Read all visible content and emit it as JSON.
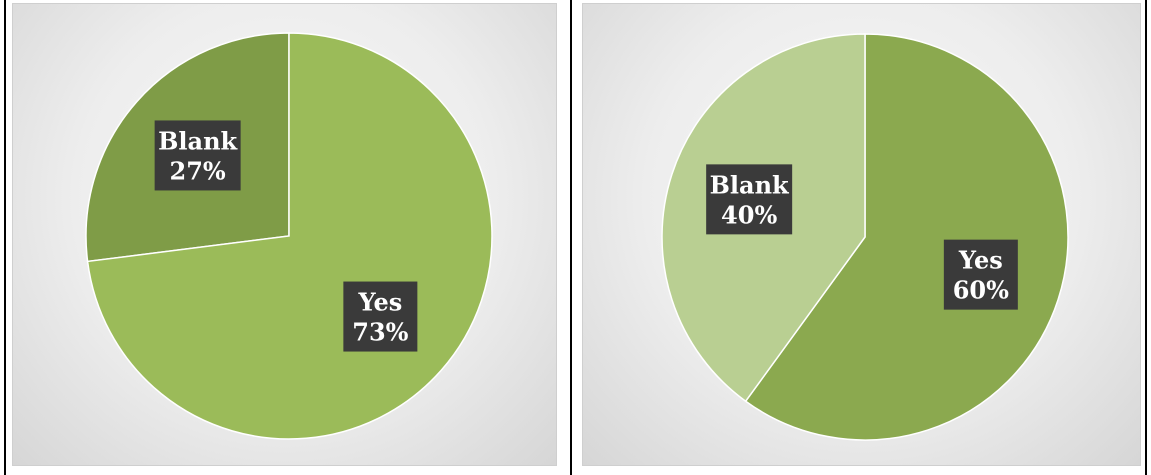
{
  "chart_data": [
    {
      "type": "pie",
      "title": "",
      "categories": [
        "Blank",
        "Yes"
      ],
      "values": [
        27,
        73
      ],
      "labels": [
        "27%",
        "73%"
      ],
      "colors": [
        "#7f9c47",
        "#9bbb59"
      ],
      "start_angle_deg": 0,
      "legend": "none"
    },
    {
      "type": "pie",
      "title": "",
      "categories": [
        "Yes",
        "Blank"
      ],
      "values": [
        60,
        40
      ],
      "labels": [
        "60%",
        "40%"
      ],
      "colors": [
        "#8ba94f",
        "#b9cf92"
      ],
      "start_angle_deg": 0,
      "legend": "none"
    }
  ]
}
